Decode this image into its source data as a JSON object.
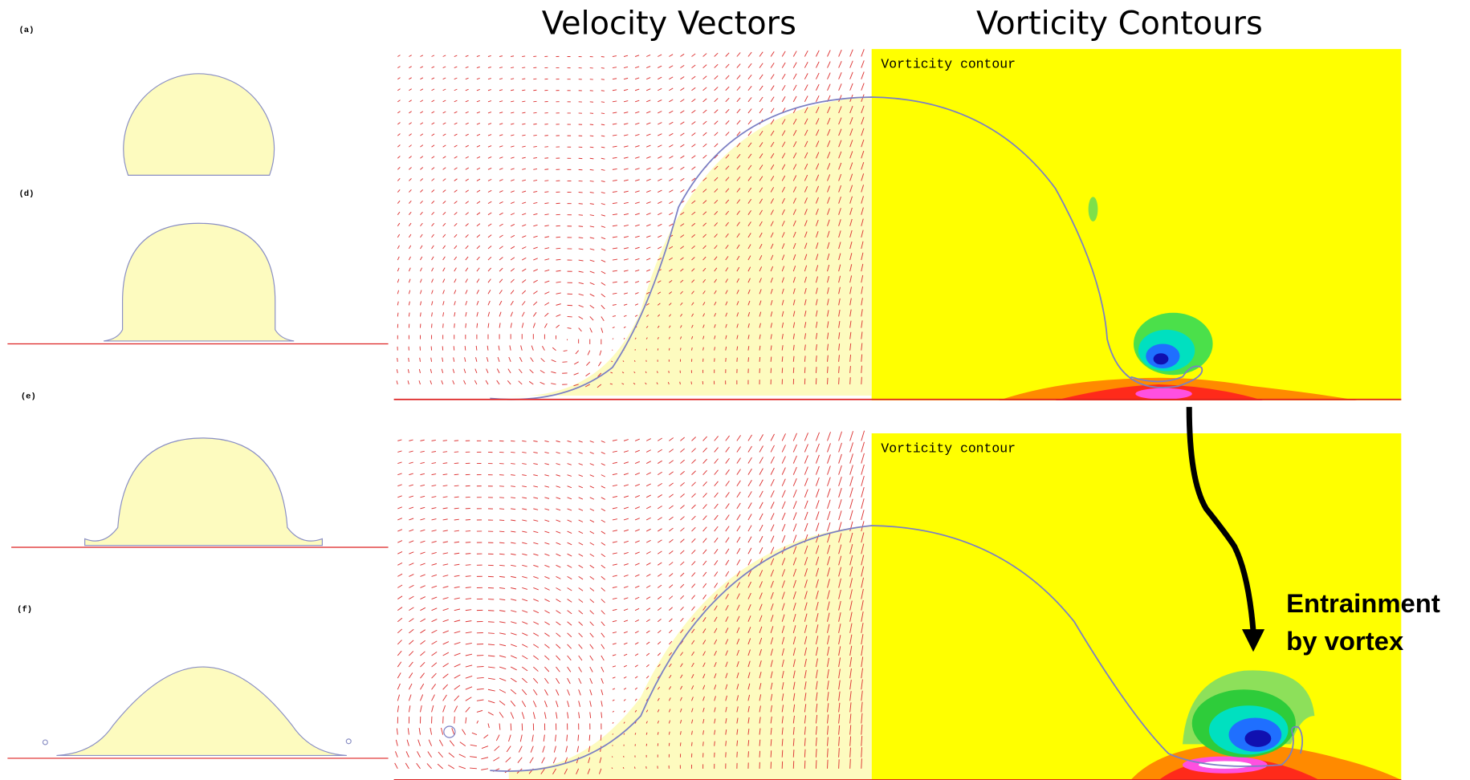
{
  "panel_labels": [
    "(a)",
    "(d)",
    "(e)",
    "(f)"
  ],
  "headings": {
    "velocity": "Velocity Vectors",
    "vorticity": "Vorticity Contours"
  },
  "plots": [
    {
      "label": "Vorticity contour"
    },
    {
      "label": "Vorticity contour"
    }
  ],
  "annotation": {
    "lines": [
      "Entrainment",
      "by vortex"
    ]
  }
}
